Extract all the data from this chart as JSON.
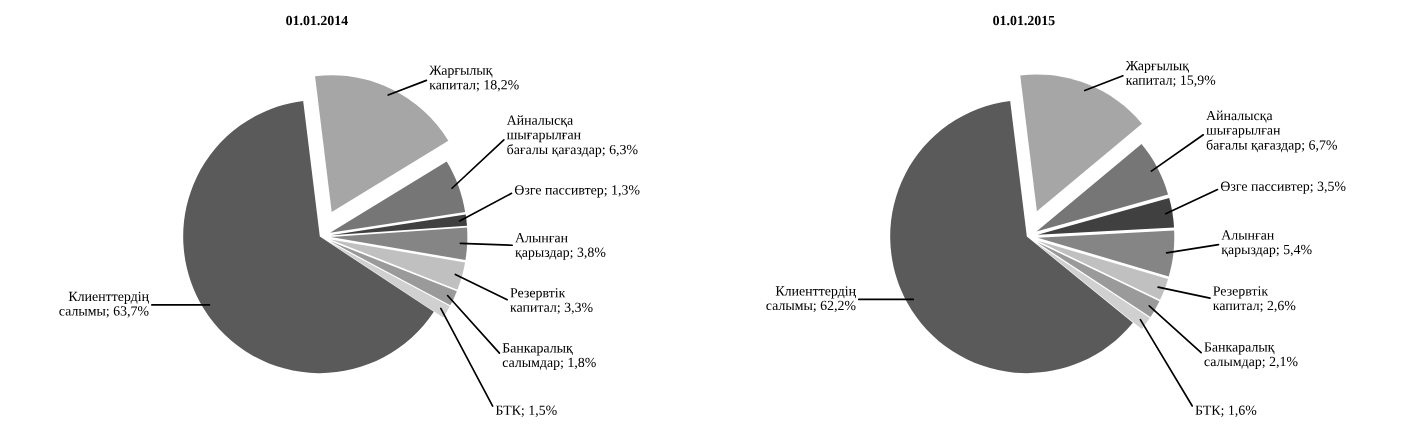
{
  "chart_data": [
    {
      "type": "pie",
      "title": "01.01.2014",
      "categories": [
        "Жарғылық\nкапитал",
        "Айналысқа\nшығарылған\nбағалы қағаздар",
        "Өзге пассивтер",
        "Алынған\nқарыздар",
        "Резервтік\nкапитал",
        "Банкаралық\nсалымдар",
        "БТК",
        "Клиенттердің\nсалымы"
      ],
      "values": [
        18.2,
        6.3,
        1.3,
        3.8,
        3.3,
        1.8,
        1.5,
        63.7
      ],
      "value_labels": [
        "18,2%",
        "6,3%",
        "1,3%",
        "3,8%",
        "3,3%",
        "1,8%",
        "1,5%",
        "63,7%"
      ],
      "colors": [
        "#a6a6a6",
        "#767676",
        "#404040",
        "#858585",
        "#c0c0c0",
        "#9a9a9a",
        "#d0d0d0",
        "#5a5a5a"
      ],
      "legend": false
    },
    {
      "type": "pie",
      "title": "01.01.2015",
      "categories": [
        "Жарғылық\nкапитал",
        "Айналысқа\nшығарылған\nбағалы қағаздар",
        "Өзге пассивтер",
        "Алынған\nқарыздар",
        "Резервтік\nкапитал",
        "Банкаралық\nсалымдар",
        "БТК",
        "Клиенттердің\nсалымы"
      ],
      "values": [
        15.9,
        6.7,
        3.5,
        5.4,
        2.6,
        2.1,
        1.6,
        62.2
      ],
      "value_labels": [
        "15,9%",
        "6,7%",
        "3,5%",
        "5,4%",
        "2,6%",
        "2,1%",
        "1,6%",
        "62,2%"
      ],
      "colors": [
        "#a6a6a6",
        "#767676",
        "#404040",
        "#858585",
        "#c0c0c0",
        "#9a9a9a",
        "#d0d0d0",
        "#5a5a5a"
      ],
      "legend": false
    }
  ]
}
